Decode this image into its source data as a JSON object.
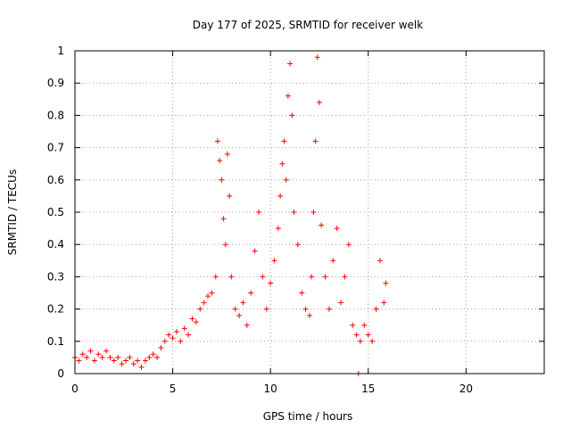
{
  "chart_data": {
    "type": "scatter",
    "title": "Day 177 of 2025, SRMTID for receiver welk",
    "xlabel": "GPS time / hours",
    "ylabel": "SRMTID / TECUs",
    "xlim": [
      0,
      24
    ],
    "ylim": [
      0,
      1
    ],
    "xticks": [
      0,
      5,
      10,
      15,
      20
    ],
    "yticks": [
      0,
      0.1,
      0.2,
      0.3,
      0.4,
      0.5,
      0.6,
      0.7,
      0.8,
      0.9,
      1
    ],
    "xtick_labels": [
      "0",
      "5",
      "10",
      "15",
      "20"
    ],
    "ytick_labels": [
      "0",
      "0.1",
      "0.2",
      "0.3",
      "0.4",
      "0.5",
      "0.6",
      "0.7",
      "0.8",
      "0.9",
      "1"
    ],
    "grid": true,
    "marker": "+",
    "series_color": "#ff0000",
    "series": [
      {
        "name": "SRMTID",
        "x": [
          0.0,
          0.2,
          0.4,
          0.6,
          0.8,
          1.0,
          1.2,
          1.4,
          1.6,
          1.8,
          2.0,
          2.2,
          2.4,
          2.6,
          2.8,
          3.0,
          3.2,
          3.4,
          3.6,
          3.8,
          4.0,
          4.2,
          4.4,
          4.6,
          4.8,
          5.0,
          5.2,
          5.4,
          5.6,
          5.8,
          6.0,
          6.2,
          6.4,
          6.6,
          6.8,
          7.0,
          7.2,
          7.3,
          7.4,
          7.5,
          7.6,
          7.7,
          7.8,
          7.9,
          8.0,
          8.2,
          8.4,
          8.6,
          8.8,
          9.0,
          9.2,
          9.4,
          9.6,
          9.8,
          10.0,
          10.2,
          10.4,
          10.5,
          10.6,
          10.7,
          10.8,
          10.9,
          11.0,
          11.1,
          11.2,
          11.4,
          11.6,
          11.8,
          12.0,
          12.1,
          12.2,
          12.3,
          12.4,
          12.5,
          12.6,
          12.8,
          13.0,
          13.2,
          13.4,
          13.6,
          13.8,
          14.0,
          14.2,
          14.4,
          14.5,
          14.6,
          14.8,
          15.0,
          15.2,
          15.4,
          15.6,
          15.8,
          15.9
        ],
        "y": [
          0.05,
          0.04,
          0.06,
          0.05,
          0.07,
          0.04,
          0.06,
          0.05,
          0.07,
          0.05,
          0.04,
          0.05,
          0.03,
          0.04,
          0.05,
          0.03,
          0.04,
          0.02,
          0.04,
          0.05,
          0.06,
          0.05,
          0.08,
          0.1,
          0.12,
          0.11,
          0.13,
          0.1,
          0.14,
          0.12,
          0.17,
          0.16,
          0.2,
          0.22,
          0.24,
          0.25,
          0.3,
          0.72,
          0.66,
          0.6,
          0.48,
          0.4,
          0.68,
          0.55,
          0.3,
          0.2,
          0.18,
          0.22,
          0.15,
          0.25,
          0.38,
          0.5,
          0.3,
          0.2,
          0.28,
          0.35,
          0.45,
          0.55,
          0.65,
          0.72,
          0.6,
          0.86,
          0.96,
          0.8,
          0.5,
          0.4,
          0.25,
          0.2,
          0.18,
          0.3,
          0.5,
          0.72,
          0.98,
          0.84,
          0.46,
          0.3,
          0.2,
          0.35,
          0.45,
          0.22,
          0.3,
          0.4,
          0.15,
          0.12,
          0.0,
          0.1,
          0.15,
          0.12,
          0.1,
          0.2,
          0.35,
          0.22,
          0.28
        ]
      }
    ]
  }
}
